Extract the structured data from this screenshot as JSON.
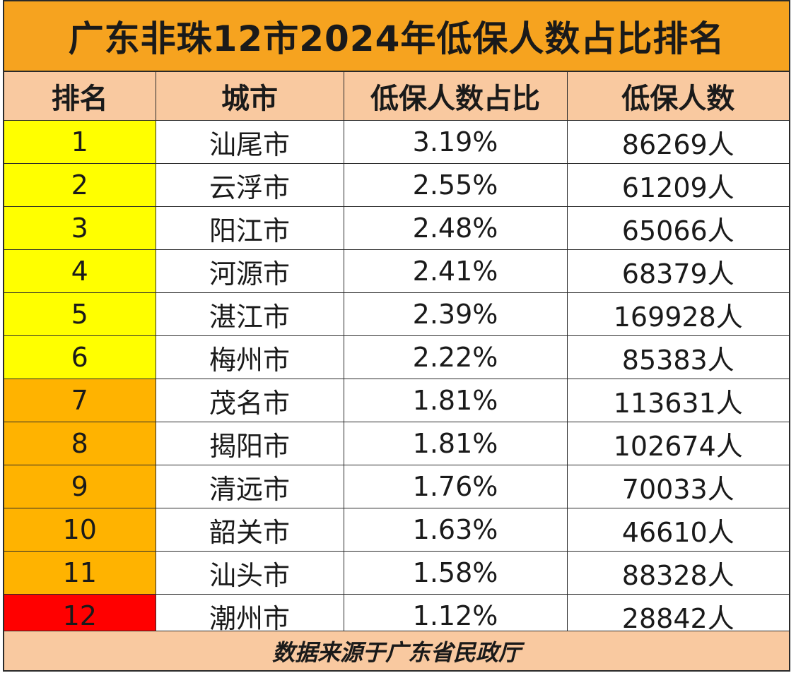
{
  "title": "广东非珠12市2024年低保人数占比排名",
  "headers": {
    "rank": "排名",
    "city": "城市",
    "ratio": "低保人数占比",
    "count": "低保人数"
  },
  "rows": [
    {
      "rank": "1",
      "city": "汕尾市",
      "ratio": "3.19%",
      "count": "86269人",
      "color": "#ffff00"
    },
    {
      "rank": "2",
      "city": "云浮市",
      "ratio": "2.55%",
      "count": "61209人",
      "color": "#ffff00"
    },
    {
      "rank": "3",
      "city": "阳江市",
      "ratio": "2.48%",
      "count": "65066人",
      "color": "#ffff00"
    },
    {
      "rank": "4",
      "city": "河源市",
      "ratio": "2.41%",
      "count": "68379人",
      "color": "#ffff00"
    },
    {
      "rank": "5",
      "city": "湛江市",
      "ratio": "2.39%",
      "count": "169928人",
      "color": "#ffff00"
    },
    {
      "rank": "6",
      "city": "梅州市",
      "ratio": "2.22%",
      "count": "85383人",
      "color": "#ffff00"
    },
    {
      "rank": "7",
      "city": "茂名市",
      "ratio": "1.81%",
      "count": "113631人",
      "color": "#ffb300"
    },
    {
      "rank": "8",
      "city": "揭阳市",
      "ratio": "1.81%",
      "count": "102674人",
      "color": "#ffb300"
    },
    {
      "rank": "9",
      "city": "清远市",
      "ratio": "1.76%",
      "count": "70033人",
      "color": "#ffb300"
    },
    {
      "rank": "10",
      "city": "韶关市",
      "ratio": "1.63%",
      "count": "46610人",
      "color": "#ffb300"
    },
    {
      "rank": "11",
      "city": "汕头市",
      "ratio": "1.58%",
      "count": "88328人",
      "color": "#ffb300"
    },
    {
      "rank": "12",
      "city": "潮州市",
      "ratio": "1.12%",
      "count": "28842人",
      "color": "#ff0000"
    }
  ],
  "footer": "数据来源于广东省民政厅"
}
